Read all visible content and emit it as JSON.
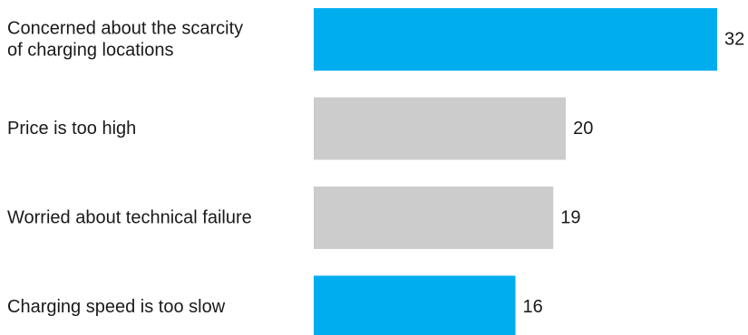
{
  "chart_data": {
    "type": "bar",
    "orientation": "horizontal",
    "categories": [
      "Concerned about the scarcity of charging locations",
      "Price is too high",
      "Worried about technical failure",
      "Charging speed is too slow"
    ],
    "category_lines": [
      [
        "Concerned about the scarcity",
        "of charging locations"
      ],
      [
        "Price is too high"
      ],
      [
        "Worried about technical failure"
      ],
      [
        "Charging speed is too slow"
      ]
    ],
    "values": [
      32,
      20,
      19,
      16
    ],
    "colors": [
      "#00aeef",
      "#cccccc",
      "#cccccc",
      "#00aeef"
    ],
    "xlim": [
      0,
      32
    ],
    "grid": false,
    "legend": "none",
    "data_labels": true
  }
}
